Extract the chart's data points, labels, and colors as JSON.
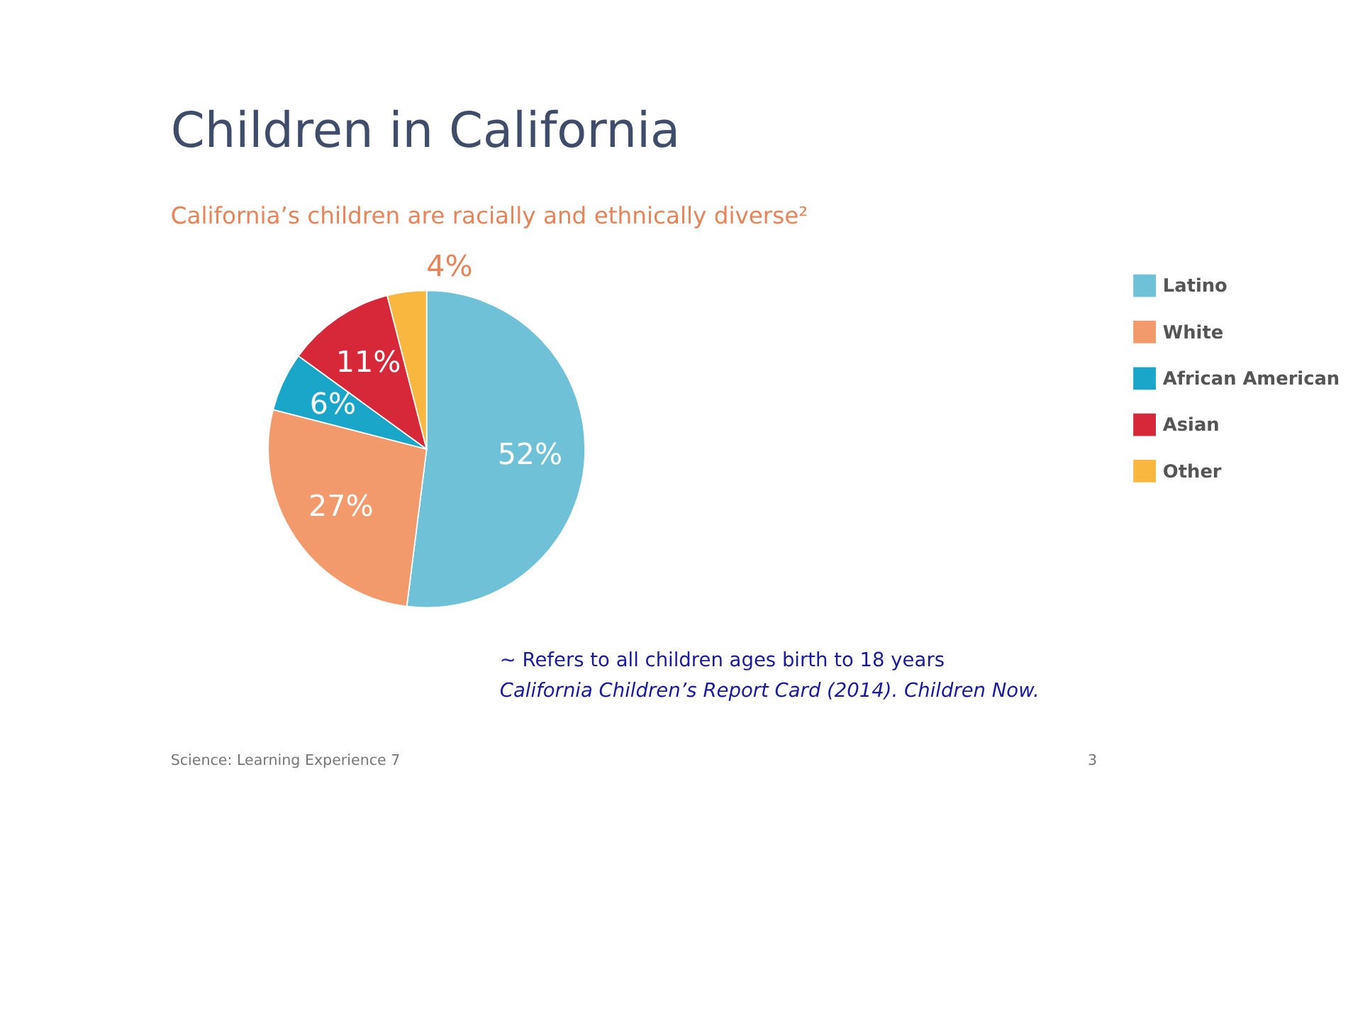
{
  "chart_data": {
    "type": "pie",
    "title": "Children in California",
    "subtitle": "California’s children are racially and ethnically diverse²",
    "categories": [
      "Latino",
      "White",
      "African American",
      "Asian",
      "Other"
    ],
    "values": [
      52,
      27,
      6,
      11,
      4
    ],
    "value_labels": [
      "52%",
      "27%",
      "6%",
      "11%",
      "4%"
    ],
    "colors": [
      "#6ec1d6",
      "#f29a6b",
      "#1aa6c9",
      "#d7283a",
      "#f9b73f"
    ],
    "legend": "right",
    "annotations": [
      "~ Refers to all children ages birth to 18 years",
      "California Children’s Report Card (2014). Children Now.",
      "Science: Learning Experience 7",
      "3"
    ]
  }
}
